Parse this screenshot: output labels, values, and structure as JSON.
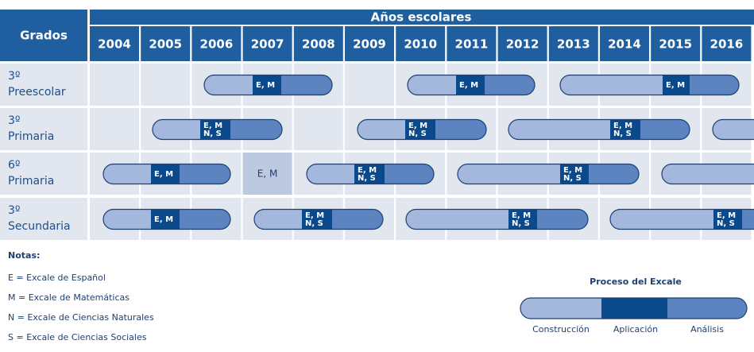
{
  "header": {
    "corner": "Grados",
    "span_title": "Años escolares",
    "years": [
      "2004",
      "2005",
      "2006",
      "2007",
      "2008",
      "2009",
      "2010",
      "2011",
      "2012",
      "2013",
      "2014",
      "2015",
      "2016"
    ]
  },
  "rows": [
    {
      "grade": "3º",
      "level": "Preescolar",
      "pills": [
        [
          "E, M"
        ],
        [
          "E, M"
        ],
        [
          "E, M"
        ]
      ]
    },
    {
      "grade": "3º",
      "level": "Primaria",
      "pills": [
        [
          "E, M",
          "N, S"
        ],
        [
          "E, M",
          "N, S"
        ],
        [
          "E, M",
          "N, S"
        ]
      ]
    },
    {
      "grade": "6º",
      "level": "Primaria",
      "cell_label": "E, M",
      "pills": [
        [
          "E, M"
        ],
        [
          "E, M",
          "N, S"
        ],
        [
          "E, M",
          "N, S"
        ]
      ]
    },
    {
      "grade": "3º",
      "level": "Secundaria",
      "pills": [
        [
          "E, M"
        ],
        [
          "E, M",
          "N, S"
        ],
        [
          "E, M",
          "N, S"
        ],
        [
          "E, M",
          "N, S"
        ]
      ]
    }
  ],
  "notes": {
    "title": "Notas:",
    "items": [
      "E = Excale de Español",
      "M = Excale de Matemáticas",
      "N = Excale de Ciencias Naturales",
      "S = Excale de Ciencias Sociales"
    ]
  },
  "legend": {
    "title": "Proceso del Excale",
    "stages": [
      "Construcción",
      "Aplicación",
      "Análisis"
    ]
  }
}
